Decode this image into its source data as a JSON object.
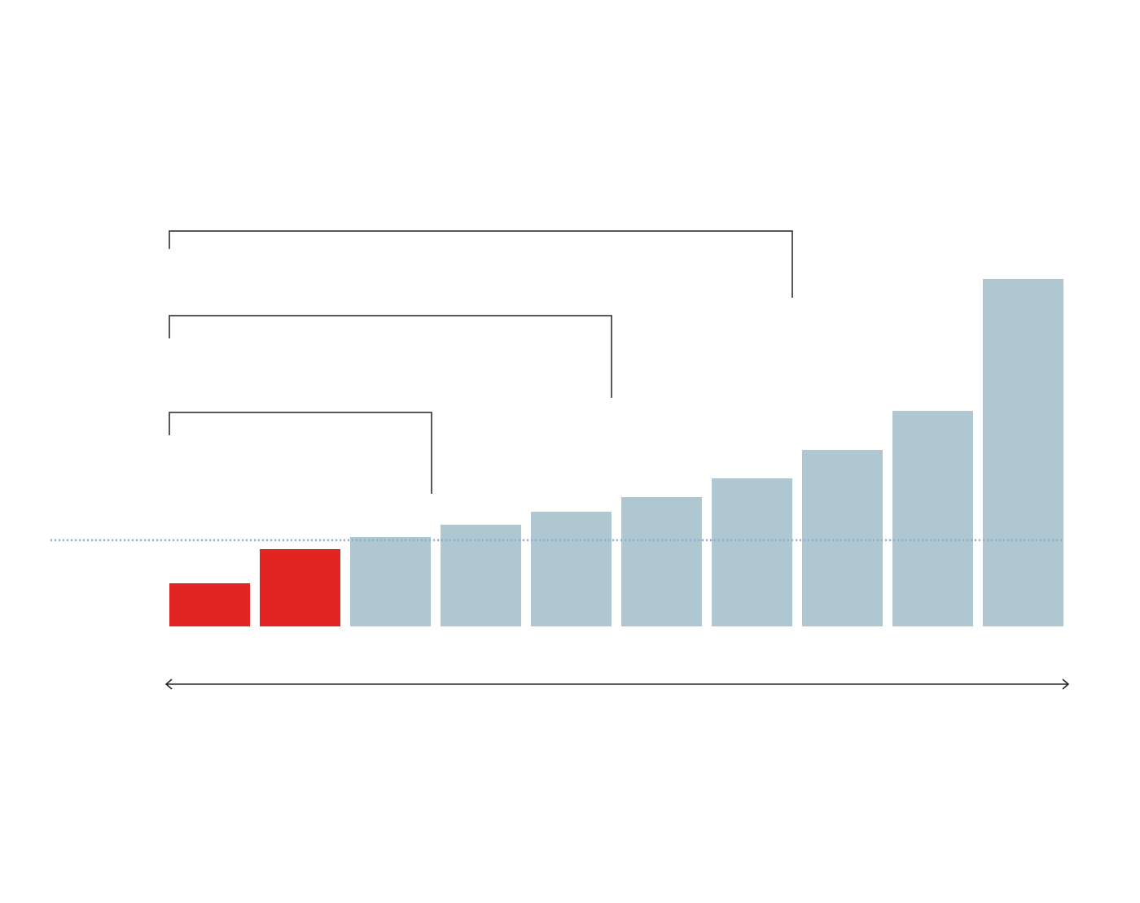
{
  "chart_data": {
    "type": "bar",
    "values": [
      53,
      95,
      110,
      125,
      141,
      159,
      182,
      217,
      265,
      427
    ],
    "colors": [
      "#e32522",
      "#e32522",
      "#aec7d1",
      "#aec7d1",
      "#aec7d1",
      "#aec7d1",
      "#aec7d1",
      "#aec7d1",
      "#aec7d1",
      "#aec7d1"
    ],
    "reference_line": {
      "value": 106,
      "color": "#8fb0cc"
    }
  }
}
